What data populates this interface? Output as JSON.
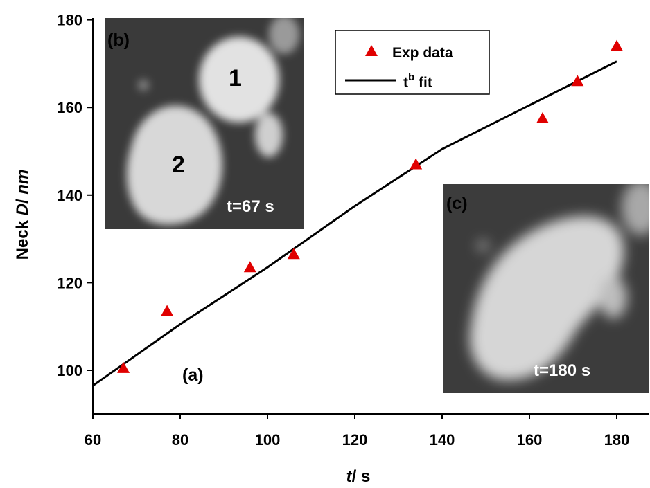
{
  "chart_data": {
    "type": "scatter",
    "xlabel": "t/ s",
    "ylabel": "Neck D/ nm",
    "xlim": [
      60,
      185
    ],
    "ylim": [
      90,
      180
    ],
    "xticks": [
      "60",
      "80",
      "100",
      "120",
      "140",
      "160",
      "180"
    ],
    "yticks": [
      "100",
      "120",
      "140",
      "160",
      "180"
    ],
    "grid": false,
    "legend_position": "top-right",
    "series": [
      {
        "name": "Exp data",
        "kind": "scatter",
        "marker": "triangle",
        "color": "#e00000",
        "x": [
          67,
          77,
          96,
          106,
          134,
          163,
          171,
          180
        ],
        "y": [
          100.5,
          113.5,
          123.5,
          126.5,
          147,
          157.5,
          166,
          174
        ]
      },
      {
        "name": "t^b fit",
        "kind": "line",
        "color": "#000000",
        "x": [
          60,
          70,
          80,
          90,
          100,
          110,
          120,
          130,
          140,
          150,
          160,
          170,
          180
        ],
        "y": [
          96.5,
          103.5,
          110.5,
          117,
          123.5,
          130.5,
          137.5,
          144,
          150.5,
          155.5,
          160.5,
          165.5,
          170.5
        ]
      }
    ],
    "legend": {
      "exp_label": "Exp data",
      "fit_label_base": "t",
      "fit_label_sup": "b",
      "fit_label_rest": " fit"
    },
    "annotations": {
      "panel_a": "(a)",
      "inset_b": {
        "label": "(b)",
        "time": "t=67 s",
        "particle_1": "1",
        "particle_2": "2"
      },
      "inset_c": {
        "label": "(c)",
        "time": "t=180 s"
      }
    },
    "axis_title_parts": {
      "x_italic": "t",
      "x_rest": "/ s",
      "y_prefix": "Neck ",
      "y_italic": "D",
      "y_mid": "/ ",
      "y_italic2": "nm"
    }
  }
}
